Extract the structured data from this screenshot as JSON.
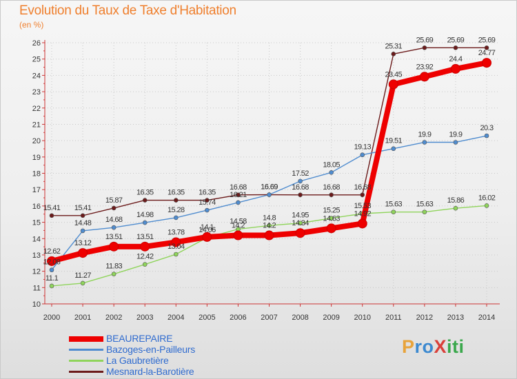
{
  "title": "Evolution du Taux de Taxe d'Habitation",
  "subtitle": "(en %)",
  "brand": {
    "text": "ProXiti"
  },
  "chart_data": {
    "type": "line",
    "title": "Evolution du Taux de Taxe d'Habitation",
    "subtitle": "(en %)",
    "xlabel": "",
    "ylabel": "",
    "categories": [
      "2000",
      "2001",
      "2002",
      "2003",
      "2004",
      "2005",
      "2006",
      "2007",
      "2008",
      "2009",
      "2010",
      "2011",
      "2012",
      "2013",
      "2014"
    ],
    "ylim": [
      10,
      26
    ],
    "yticks": [
      10,
      11,
      12,
      13,
      14,
      15,
      16,
      17,
      18,
      19,
      20,
      21,
      22,
      23,
      24,
      25,
      26
    ],
    "grid": true,
    "legend_position": "bottom-left",
    "series": [
      {
        "name": "Mesnard-la-Barotière",
        "color": "#6b1a1a",
        "values": [
          15.41,
          15.41,
          15.87,
          16.35,
          16.35,
          16.35,
          16.68,
          16.69,
          16.68,
          16.68,
          16.68,
          25.31,
          25.69,
          25.69,
          25.69
        ],
        "labels": [
          "15.41",
          "15.41",
          "15.87",
          "16.35",
          "16.35",
          "16.35",
          "16.68",
          "16.69",
          "16.68",
          "16.68",
          "16.68",
          "25.31",
          "25.69",
          "25.69",
          "25.69"
        ]
      },
      {
        "name": "Bazoges-en-Pailleurs",
        "color": "#4f8ccf",
        "values": [
          12.08,
          14.48,
          14.68,
          14.98,
          15.28,
          15.74,
          16.21,
          16.69,
          17.52,
          18.05,
          19.13,
          19.51,
          19.9,
          19.9,
          20.3
        ],
        "labels": [
          "12.08",
          "14.48",
          "14.68",
          "14.98",
          "15.28",
          "15.74",
          "16.21",
          "16.69",
          "17.52",
          "18.05",
          "19.13",
          "19.51",
          "19.9",
          "19.9",
          "20.3"
        ]
      },
      {
        "name": "La Gaubretière",
        "color": "#8fd45b",
        "values": [
          11.1,
          11.27,
          11.83,
          12.42,
          13.04,
          14.06,
          14.58,
          14.8,
          14.95,
          15.25,
          15.53,
          15.63,
          15.63,
          15.86,
          16.02
        ],
        "labels": [
          "11.1",
          "11.27",
          "11.83",
          "12.42",
          "13.04",
          "14.06",
          "14.58",
          "14.8",
          "14.95",
          "15.25",
          "15.53",
          "15.63",
          "15.63",
          "15.86",
          "16.02"
        ]
      },
      {
        "name": "BEAUREPAIRE",
        "color": "#ee0000",
        "values": [
          12.62,
          13.12,
          13.51,
          13.51,
          13.78,
          14.1,
          14.2,
          14.2,
          14.34,
          14.63,
          14.92,
          23.45,
          23.92,
          24.4,
          24.77
        ],
        "labels": [
          "12.62",
          "13.12",
          "13.51",
          "13.51",
          "13.78",
          "14.1",
          "14.2",
          "14.2",
          "14.34",
          "14.63",
          "14.92",
          "23.45",
          "23.92",
          "24.4",
          "24.77"
        ]
      }
    ],
    "legend": [
      {
        "name": "BEAUREPAIRE",
        "color": "#ee0000"
      },
      {
        "name": "Bazoges-en-Pailleurs",
        "color": "#4f8ccf"
      },
      {
        "name": "La Gaubretière",
        "color": "#8fd45b"
      },
      {
        "name": "Mesnard-la-Barotière",
        "color": "#6b1a1a"
      }
    ]
  }
}
